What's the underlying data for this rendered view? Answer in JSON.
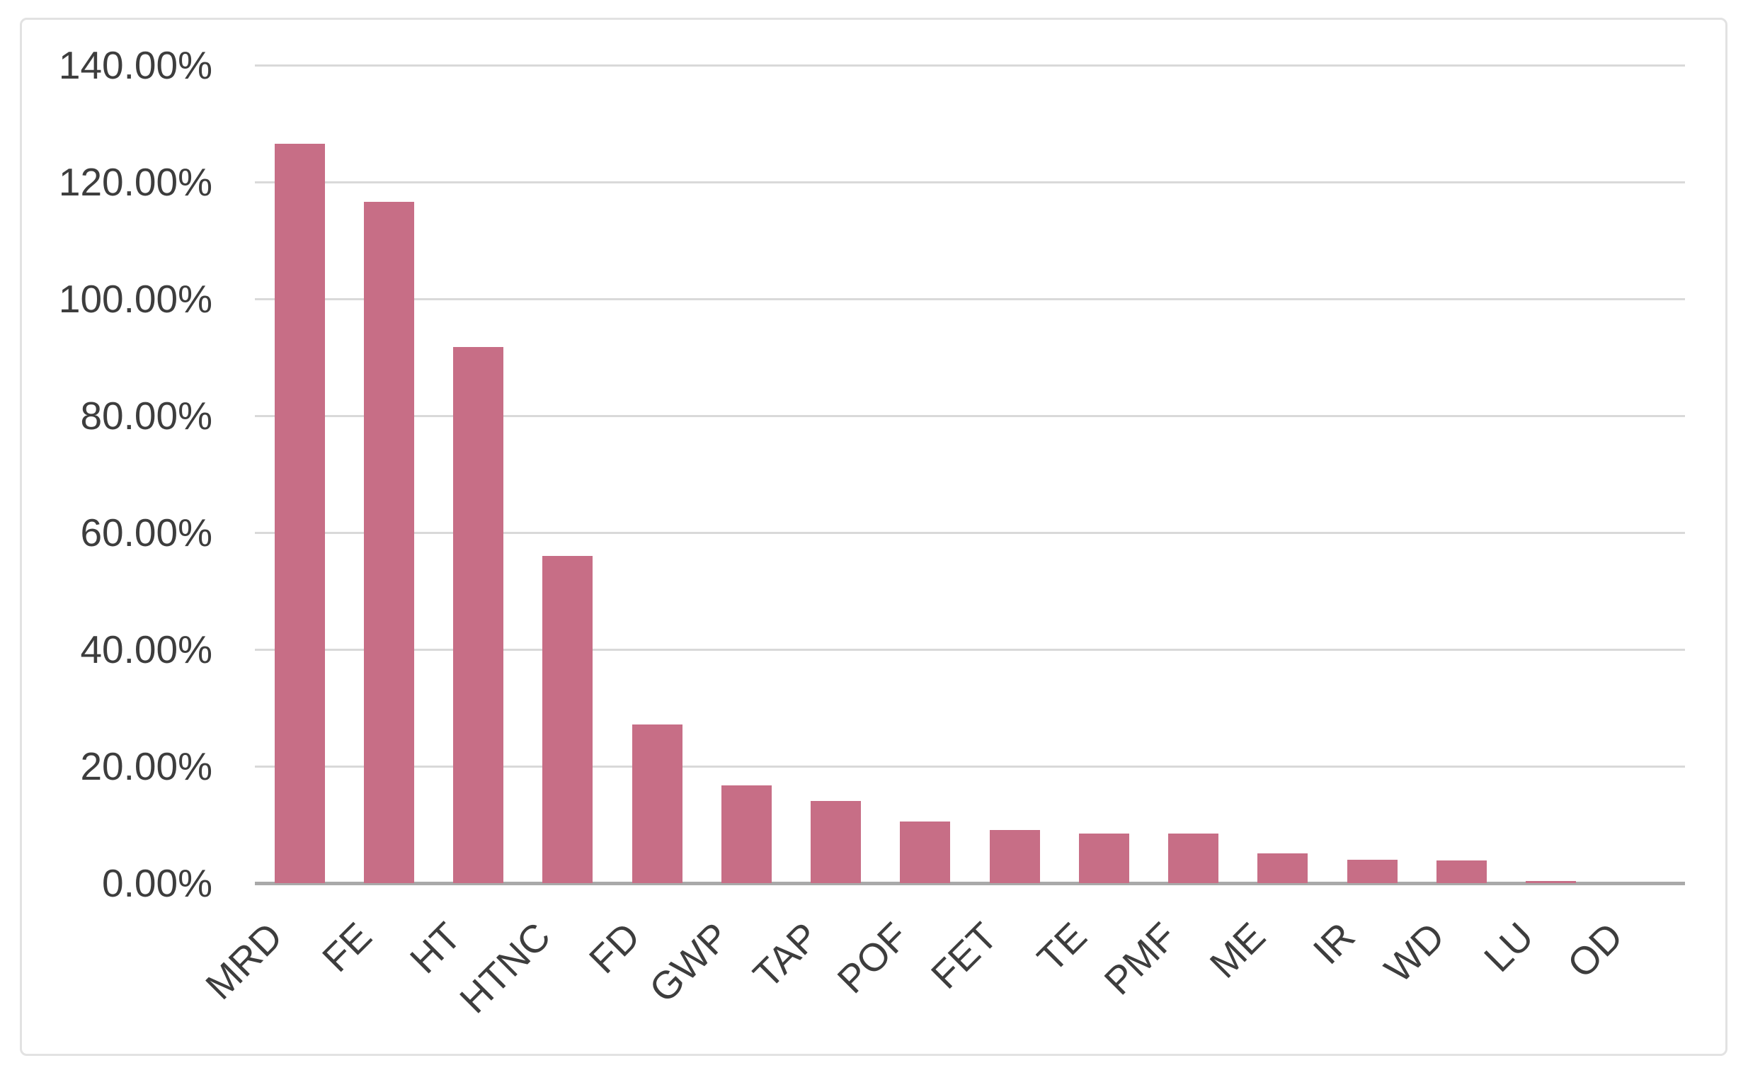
{
  "chart_data": {
    "type": "bar",
    "title": "",
    "xlabel": "",
    "ylabel": "",
    "categories": [
      "MRD",
      "FE",
      "HT",
      "HTNC",
      "FD",
      "GWP",
      "TAP",
      "POF",
      "FET",
      "TE",
      "PMF",
      "ME",
      "IR",
      "WD",
      "LU",
      "OD"
    ],
    "values": [
      126.6,
      116.6,
      91.7,
      56.0,
      27.1,
      16.7,
      14.0,
      10.5,
      9.1,
      8.5,
      8.5,
      5.1,
      4.0,
      3.9,
      0.4,
      0.0
    ],
    "value_unit": "percent",
    "y_axis": {
      "min": 0,
      "max": 140,
      "step": 20,
      "tick_labels": [
        "0.00%",
        "20.00%",
        "40.00%",
        "60.00%",
        "80.00%",
        "100.00%",
        "120.00%",
        "140.00%"
      ]
    },
    "grid": true,
    "legend": false,
    "x_tick_rotation_deg": 45,
    "colors": {
      "bar_fill": "#c76e86",
      "gridline": "#d9d9d9",
      "axis_line": "#a9a9a9",
      "tick_label_text": "#3d3d3d",
      "frame_border": "#e2e2e2",
      "background": "#ffffff"
    }
  }
}
